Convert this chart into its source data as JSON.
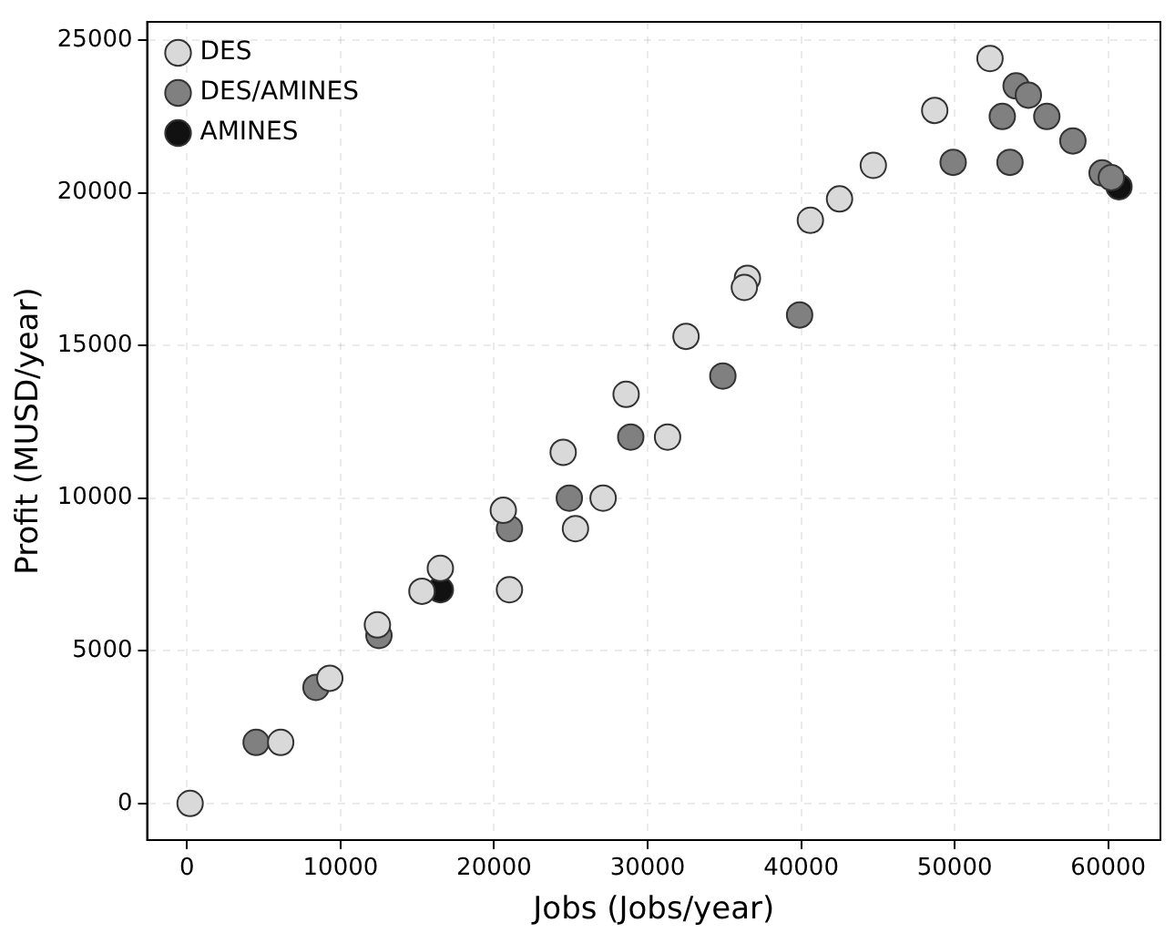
{
  "chart_data": {
    "type": "scatter",
    "xlabel": "Jobs (Jobs/year)",
    "ylabel": "Profit (MUSD/year)",
    "xlim": [
      -2600,
      63400
    ],
    "ylim": [
      -1200,
      25600
    ],
    "xticks": [
      0,
      10000,
      20000,
      30000,
      40000,
      50000,
      60000
    ],
    "yticks": [
      0,
      5000,
      10000,
      15000,
      20000,
      25000
    ],
    "grid": true,
    "legend": "top left",
    "marker": "circle",
    "series": [
      {
        "name": "DES",
        "color": "#d9d9d9",
        "x": [
          200,
          6100,
          9300,
          12400,
          15300,
          16500,
          20600,
          21000,
          24500,
          25300,
          27100,
          28600,
          31300,
          32500,
          36500,
          36300,
          40600,
          42500,
          44700,
          48700,
          52300
        ],
        "values": [
          0,
          2000,
          4100,
          5850,
          6950,
          7700,
          9600,
          7000,
          11500,
          9000,
          10000,
          13400,
          12000,
          15300,
          17200,
          16900,
          19100,
          19800,
          20900,
          22700,
          24400
        ]
      },
      {
        "name": "DES/AMINES",
        "color": "#808080",
        "x": [
          4500,
          8400,
          12500,
          21000,
          24900,
          28900,
          34900,
          39900,
          49900,
          53100,
          53600,
          54000,
          54800,
          56000,
          57700,
          59600,
          60200
        ],
        "values": [
          2000,
          3800,
          5500,
          9000,
          10000,
          12000,
          14000,
          16000,
          21000,
          22500,
          21000,
          23500,
          23200,
          22500,
          21700,
          20650,
          20500
        ]
      },
      {
        "name": "AMINES",
        "color": "#111111",
        "x": [
          16500,
          60700
        ],
        "values": [
          7000,
          20200
        ]
      }
    ]
  }
}
